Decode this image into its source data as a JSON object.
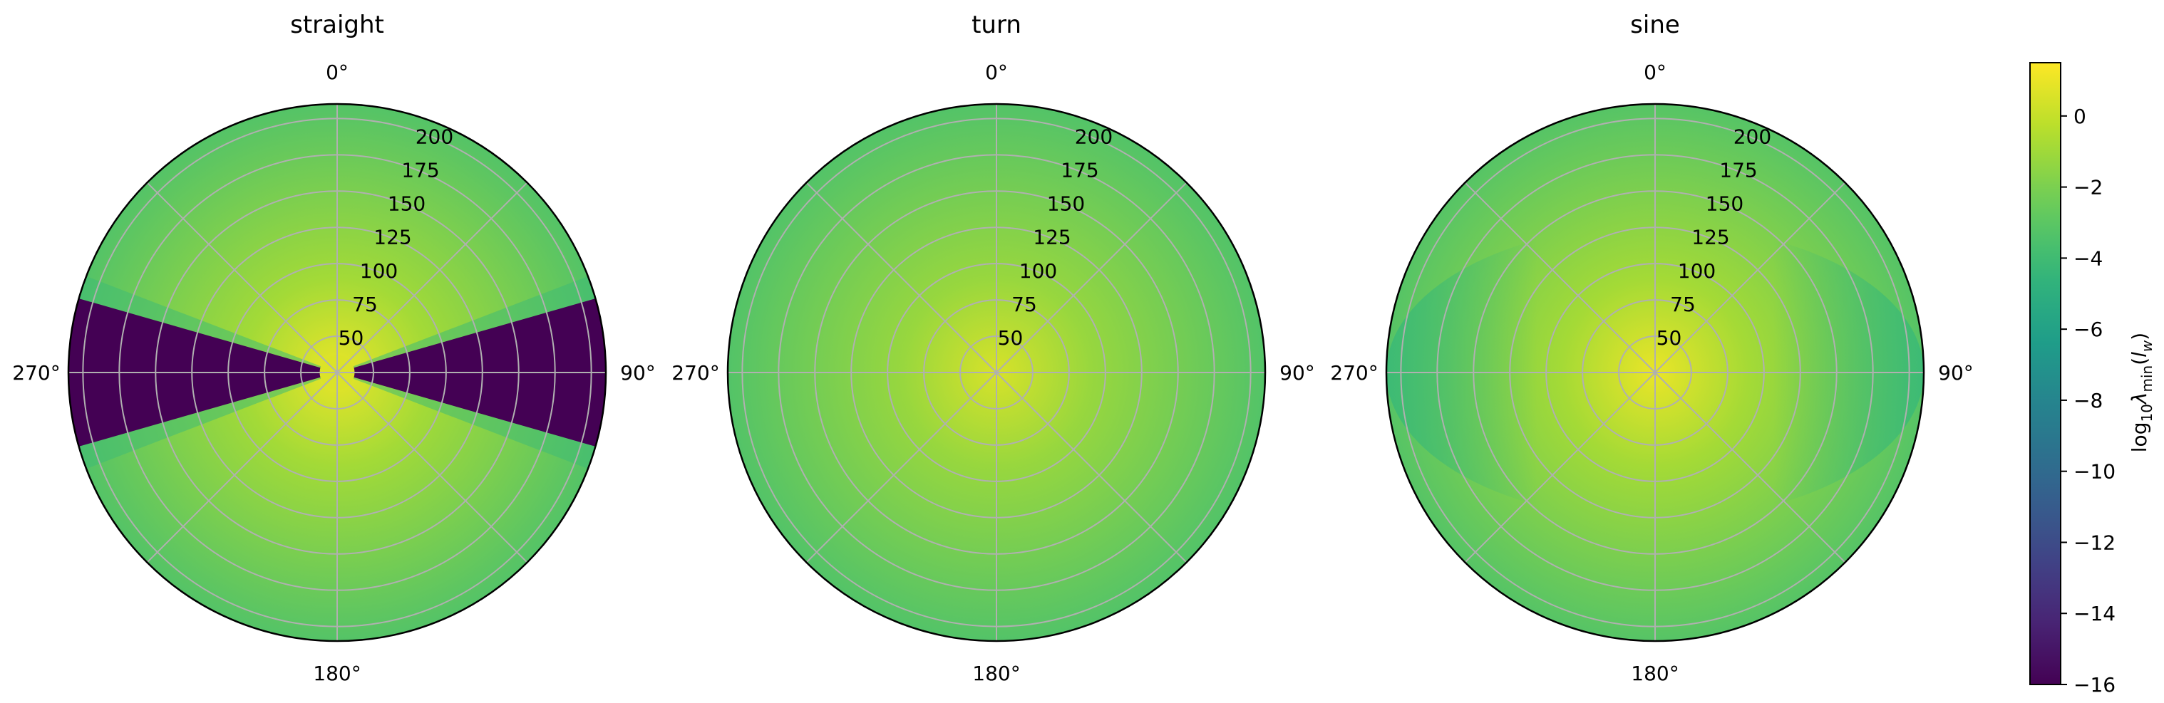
{
  "colors": {
    "grid": "#b0b0b0",
    "outline": "#000000",
    "background": "#ffffff"
  },
  "chart_data": [
    {
      "type": "heatmap",
      "projection": "polar",
      "title": "straight",
      "theta_zero_location": "N",
      "theta_direction": "clockwise",
      "theta_tick_labels": [
        "0°",
        "90°",
        "180°",
        "270°"
      ],
      "r_ticks": [
        50,
        75,
        100,
        125,
        150,
        175,
        200
      ],
      "rlim": [
        25,
        210
      ],
      "grid": true,
      "colormap": "viridis",
      "color_range": [
        -16,
        1.5
      ],
      "values_description": [
        {
          "region": "center (r≈25)",
          "value": 1
        },
        {
          "region": "outer edge, angles 0° and 180°",
          "value": -2.5
        },
        {
          "region": "near 70°, 110°, 250°, 290° boundaries",
          "value": -4
        },
        {
          "region": "wedges around 90° and 270°, r > ~40",
          "value": -16
        }
      ]
    },
    {
      "type": "heatmap",
      "projection": "polar",
      "title": "turn",
      "theta_zero_location": "N",
      "theta_direction": "clockwise",
      "theta_tick_labels": [
        "0°",
        "90°",
        "180°",
        "270°"
      ],
      "r_ticks": [
        50,
        75,
        100,
        125,
        150,
        175,
        200
      ],
      "rlim": [
        25,
        210
      ],
      "grid": true,
      "colormap": "viridis",
      "color_range": [
        -16,
        1.5
      ],
      "values_description": [
        {
          "region": "center (r≈25)",
          "value": 0.5
        },
        {
          "region": "outer edge, all angles",
          "value": -3.3
        }
      ]
    },
    {
      "type": "heatmap",
      "projection": "polar",
      "title": "sine",
      "theta_zero_location": "N",
      "theta_direction": "clockwise",
      "theta_tick_labels": [
        "0°",
        "90°",
        "180°",
        "270°"
      ],
      "r_ticks": [
        50,
        75,
        100,
        125,
        150,
        175,
        200
      ],
      "rlim": [
        25,
        210
      ],
      "grid": true,
      "colormap": "viridis",
      "color_range": [
        -16,
        1.5
      ],
      "values_description": [
        {
          "region": "center (r≈25)",
          "value": 1
        },
        {
          "region": "outer edge, angles 0° and 180°",
          "value": -2.2
        },
        {
          "region": "outer edge, angles 90° and 270°",
          "value": -4.2
        }
      ]
    },
    {
      "type": "colorbar",
      "colormap": "viridis",
      "range": [
        -16,
        1.5
      ],
      "ticks": [
        0,
        -2,
        -4,
        -6,
        -8,
        -10,
        -12,
        -14,
        -16
      ],
      "tick_labels": [
        "0",
        "−2",
        "−4",
        "−6",
        "−8",
        "−10",
        "−12",
        "−14",
        "−16"
      ],
      "label_text": "log",
      "label_sub": "10",
      "label_lambda": "λ",
      "label_min": "min",
      "label_open": "(",
      "label_l": "l",
      "label_w": "w",
      "label_close": ")"
    }
  ]
}
